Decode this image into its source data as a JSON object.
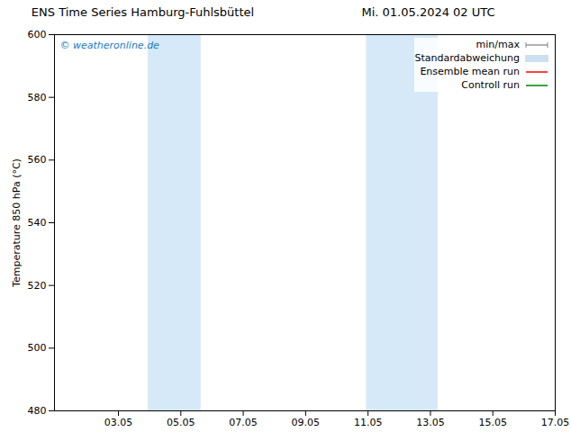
{
  "chart_data": {
    "type": "line",
    "title": "ENS Time Series Hamburg-Fuhlsbüttel",
    "subtitle": "Mi. 01.05.2024 02 UTC",
    "y_label": "Temperature 850 hPa (°C)",
    "x": [],
    "series": [
      {
        "name": "min/max",
        "color": "#999999",
        "type": "line",
        "marker": "tick",
        "values": []
      },
      {
        "name": "Standardabweichung",
        "color": "#cce0f0",
        "type": "area",
        "values": []
      },
      {
        "name": "Ensemble mean run",
        "color": "#ff0000",
        "type": "line",
        "values": []
      },
      {
        "name": "Controll run",
        "color": "#008000",
        "type": "line",
        "values": []
      }
    ],
    "shaded_regions": {
      "color": "#d6e9f8",
      "ranges": [
        [
          4.0,
          5.7
        ],
        [
          11.0,
          13.3
        ]
      ]
    },
    "annotations": [
      {
        "text": "© weatheronline.de",
        "color": "#1a7abf"
      }
    ],
    "xlim": [
      1.0,
      17.05
    ],
    "ylim": [
      480,
      600
    ],
    "xticks": [
      {
        "value": 3.05,
        "label": "03.05"
      },
      {
        "value": 5.05,
        "label": "05.05"
      },
      {
        "value": 7.05,
        "label": "07.05"
      },
      {
        "value": 9.05,
        "label": "09.05"
      },
      {
        "value": 11.05,
        "label": "11.05"
      },
      {
        "value": 13.05,
        "label": "13.05"
      },
      {
        "value": 15.05,
        "label": "15.05"
      },
      {
        "value": 17.05,
        "label": "17.05"
      }
    ],
    "yticks": [
      480,
      500,
      520,
      540,
      560,
      580,
      600
    ],
    "grid": false,
    "legend": "upper right"
  }
}
